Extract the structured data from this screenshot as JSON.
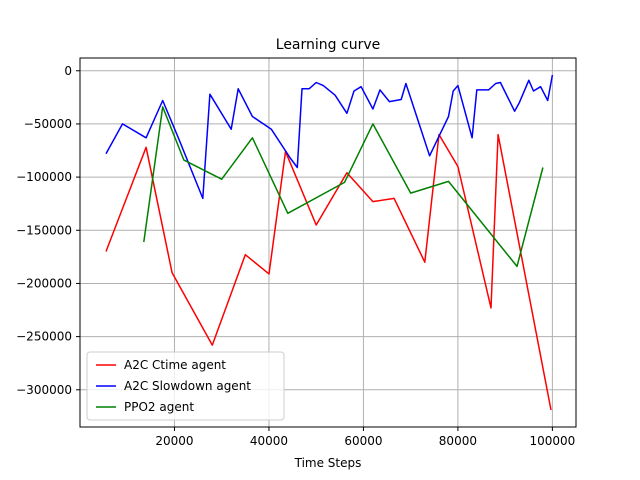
{
  "chart_data": {
    "type": "line",
    "title": "Learning curve",
    "xlabel": "Time Steps",
    "ylabel": "",
    "xlim": [
      0,
      105000
    ],
    "ylim": [
      -335000,
      12000
    ],
    "xticks": [
      20000,
      40000,
      60000,
      80000,
      100000
    ],
    "xtick_labels": [
      "20000",
      "40000",
      "60000",
      "80000",
      "100000"
    ],
    "yticks": [
      0,
      -50000,
      -100000,
      -150000,
      -200000,
      -250000,
      -300000
    ],
    "ytick_labels": [
      "0",
      "−50000",
      "−100000",
      "−150000",
      "−200000",
      "−250000",
      "−300000"
    ],
    "grid": true,
    "legend_position": "lower-left",
    "series": [
      {
        "name": "A2C Ctime agent",
        "color": "#ff0000",
        "x": [
          5500,
          14000,
          19500,
          28000,
          35000,
          40000,
          43500,
          50000,
          56500,
          62000,
          66500,
          73000,
          76000,
          80000,
          87000,
          88500,
          99700
        ],
        "y": [
          -170000,
          -72000,
          -190000,
          -258000,
          -173000,
          -191000,
          -76000,
          -145000,
          -96000,
          -123000,
          -120000,
          -180000,
          -60000,
          -90000,
          -223000,
          -60000,
          -319000
        ]
      },
      {
        "name": "A2C Slowdown agent",
        "color": "#0000ff",
        "x": [
          5500,
          9000,
          14000,
          17500,
          21000,
          26000,
          27500,
          32000,
          33500,
          36500,
          40500,
          44500,
          46000,
          47000,
          48500,
          50000,
          51500,
          54000,
          56500,
          58000,
          59500,
          62000,
          63500,
          65500,
          68000,
          69000,
          74000,
          78000,
          79000,
          80000,
          83000,
          84000,
          86500,
          88000,
          89000,
          92000,
          93000,
          95000,
          96000,
          97500,
          99000,
          100000
        ],
        "y": [
          -78000,
          -50000,
          -63000,
          -28000,
          -65000,
          -120000,
          -22000,
          -55000,
          -17000,
          -43000,
          -55000,
          -82000,
          -91000,
          -17000,
          -17000,
          -11000,
          -14000,
          -23000,
          -40000,
          -19000,
          -15000,
          -36000,
          -18000,
          -29000,
          -27000,
          -12000,
          -80000,
          -43000,
          -19000,
          -14000,
          -63000,
          -18000,
          -18000,
          -12000,
          -11000,
          -38000,
          -30000,
          -9000,
          -19000,
          -15000,
          -28000,
          -4000
        ]
      },
      {
        "name": "PPO2 agent",
        "color": "#008000",
        "x": [
          13500,
          17500,
          22000,
          30000,
          36500,
          44000,
          56000,
          62000,
          70000,
          78000,
          92500,
          98000
        ],
        "y": [
          -161000,
          -34000,
          -84000,
          -102000,
          -63000,
          -134000,
          -105000,
          -50000,
          -115000,
          -104000,
          -184000,
          -91000
        ]
      }
    ]
  }
}
